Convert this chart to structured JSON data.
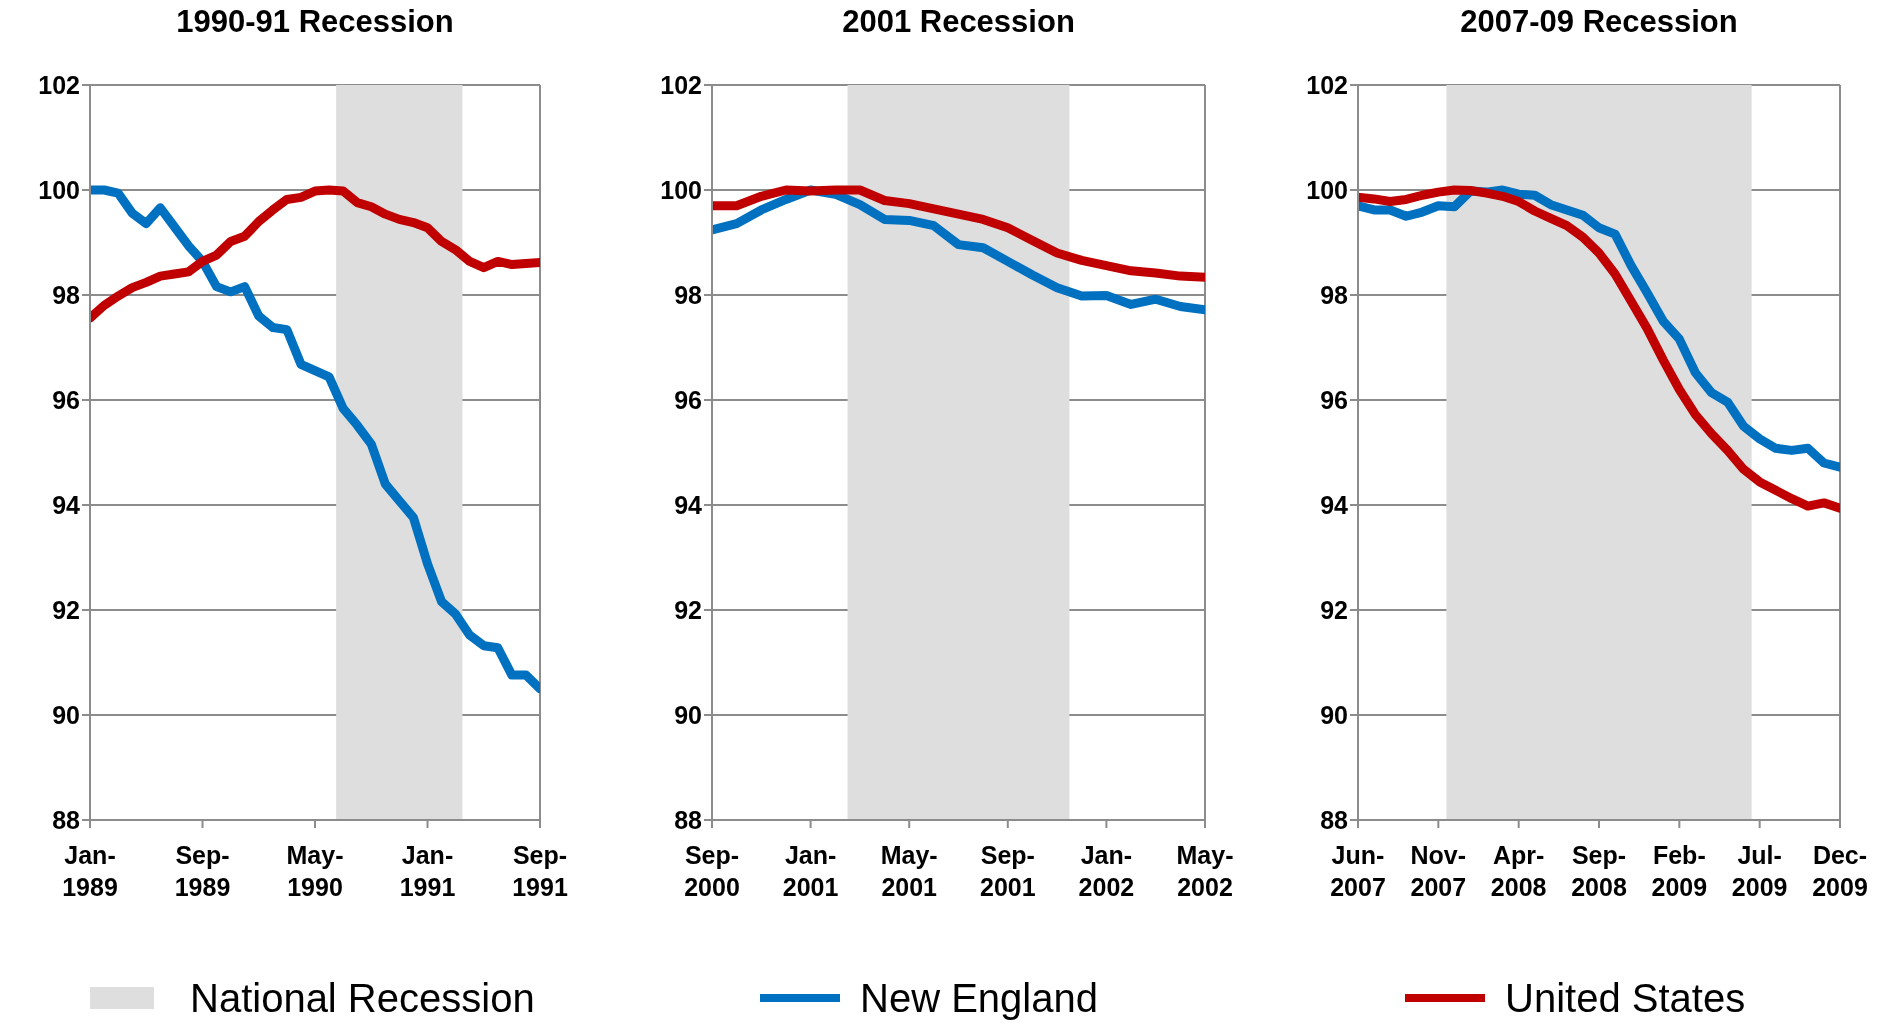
{
  "chart_data": [
    {
      "type": "line",
      "title": "1990-91 Recession",
      "legend": "bottom",
      "grid": "y",
      "x": [
        "1989-01",
        "1989-02",
        "1989-03",
        "1989-04",
        "1989-05",
        "1989-06",
        "1989-07",
        "1989-08",
        "1989-09",
        "1989-10",
        "1989-11",
        "1989-12",
        "1990-01",
        "1990-02",
        "1990-03",
        "1990-04",
        "1990-05",
        "1990-06",
        "1990-07",
        "1990-08",
        "1990-09",
        "1990-10",
        "1990-11",
        "1990-12",
        "1991-01",
        "1991-02",
        "1991-03",
        "1991-04",
        "1991-05",
        "1991-06",
        "1991-07",
        "1991-08",
        "1991-09"
      ],
      "series": [
        {
          "name": "New England",
          "color": "#0070c0",
          "values": [
            100,
            100,
            99.94,
            99.56,
            99.36,
            99.66,
            99.3,
            98.94,
            98.64,
            98.16,
            98.06,
            98.16,
            97.6,
            97.38,
            97.34,
            96.68,
            96.56,
            96.44,
            95.84,
            95.52,
            95.16,
            94.4,
            94.08,
            93.76,
            92.88,
            92.16,
            91.92,
            91.52,
            91.32,
            91.28,
            90.76,
            90.76,
            90.5
          ]
        },
        {
          "name": "United States",
          "color": "#c00000",
          "values": [
            97.56,
            97.8,
            97.98,
            98.14,
            98.24,
            98.36,
            98.4,
            98.44,
            98.64,
            98.76,
            99.02,
            99.12,
            99.4,
            99.62,
            99.82,
            99.86,
            99.98,
            100,
            99.98,
            99.76,
            99.68,
            99.54,
            99.44,
            99.38,
            99.28,
            99.02,
            98.86,
            98.64,
            98.52,
            98.64,
            98.58,
            98.6,
            98.62
          ]
        }
      ],
      "bands": [
        {
          "axis": "x",
          "from": "1990-06-16",
          "to": "1991-03-16",
          "label": "National Recession",
          "color": "#dedede"
        }
      ],
      "xlim": [
        "1989-01",
        "1991-09"
      ],
      "xticks": [
        {
          "value": "1989-01",
          "label": "Jan-1989"
        },
        {
          "value": "1989-09",
          "label": "Sep-1989"
        },
        {
          "value": "1990-05",
          "label": "May-1990"
        },
        {
          "value": "1991-01",
          "label": "Jan-1991"
        },
        {
          "value": "1991-09",
          "label": "Sep-1991"
        }
      ],
      "ylim": [
        88,
        102
      ],
      "yticks": [
        88,
        90,
        92,
        94,
        96,
        98,
        100,
        102
      ]
    },
    {
      "type": "line",
      "title": "2001 Recession",
      "grid": "y",
      "x": [
        "2000-09",
        "2000-10",
        "2000-11",
        "2000-12",
        "2001-01",
        "2001-02",
        "2001-03",
        "2001-04",
        "2001-05",
        "2001-06",
        "2001-07",
        "2001-08",
        "2001-09",
        "2001-10",
        "2001-11",
        "2001-12",
        "2002-01",
        "2002-02",
        "2002-03",
        "2002-04",
        "2002-05"
      ],
      "series": [
        {
          "color": "#0070c0",
          "values": [
            99.24,
            99.36,
            99.62,
            99.82,
            100,
            99.92,
            99.72,
            99.44,
            99.42,
            99.32,
            98.96,
            98.9,
            98.64,
            98.38,
            98.14,
            97.98,
            97.99,
            97.82,
            97.92,
            97.78,
            97.72
          ]
        },
        {
          "color": "#c00000",
          "values": [
            99.7,
            99.7,
            99.88,
            100,
            99.98,
            100,
            100,
            99.8,
            99.74,
            99.64,
            99.54,
            99.44,
            99.28,
            99.04,
            98.8,
            98.66,
            98.56,
            98.46,
            98.42,
            98.36,
            98.34
          ]
        }
      ],
      "bands": [
        {
          "axis": "x",
          "from": "2001-02-15",
          "to": "2001-11-16",
          "color": "#dedede"
        }
      ],
      "xlim": [
        "2000-09",
        "2002-05"
      ],
      "xticks": [
        {
          "value": "2000-09",
          "label": "Sep-2000"
        },
        {
          "value": "2001-01",
          "label": "Jan-2001"
        },
        {
          "value": "2001-05",
          "label": "May-2001"
        },
        {
          "value": "2001-09",
          "label": "Sep-2001"
        },
        {
          "value": "2002-01",
          "label": "Jan-2002"
        },
        {
          "value": "2002-05",
          "label": "May-2002"
        }
      ],
      "ylim": [
        88,
        102
      ],
      "yticks": [
        88,
        90,
        92,
        94,
        96,
        98,
        100,
        102
      ]
    },
    {
      "type": "line",
      "title": "2007-09 Recession",
      "grid": "y",
      "x": [
        "2007-06",
        "2007-07",
        "2007-08",
        "2007-09",
        "2007-10",
        "2007-11",
        "2007-12",
        "2008-01",
        "2008-02",
        "2008-03",
        "2008-04",
        "2008-05",
        "2008-06",
        "2008-07",
        "2008-08",
        "2008-09",
        "2008-10",
        "2008-11",
        "2008-12",
        "2009-01",
        "2009-02",
        "2009-03",
        "2009-04",
        "2009-05",
        "2009-06",
        "2009-07",
        "2009-08",
        "2009-09",
        "2009-10",
        "2009-11",
        "2009-12"
      ],
      "series": [
        {
          "color": "#0070c0",
          "values": [
            99.7,
            99.62,
            99.62,
            99.5,
            99.58,
            99.7,
            99.68,
            99.98,
            99.96,
            100,
            99.92,
            99.9,
            99.72,
            99.62,
            99.52,
            99.28,
            99.16,
            98.56,
            98.04,
            97.5,
            97.16,
            96.52,
            96.14,
            95.96,
            95.5,
            95.26,
            95.08,
            95.04,
            95.08,
            94.8,
            94.72
          ]
        },
        {
          "color": "#c00000",
          "values": [
            99.86,
            99.83,
            99.78,
            99.82,
            99.9,
            99.96,
            100,
            99.99,
            99.94,
            99.88,
            99.78,
            99.6,
            99.46,
            99.32,
            99.1,
            98.8,
            98.4,
            97.88,
            97.36,
            96.76,
            96.2,
            95.72,
            95.36,
            95.04,
            94.68,
            94.44,
            94.28,
            94.12,
            93.98,
            94.04,
            93.94
          ]
        }
      ],
      "bands": [
        {
          "axis": "x",
          "from": "2007-11-16",
          "to": "2009-06-16",
          "color": "#dedede"
        }
      ],
      "xlim": [
        "2007-06",
        "2009-12"
      ],
      "xticks": [
        {
          "value": "2007-06",
          "label": "Jun-2007"
        },
        {
          "value": "2007-11",
          "label": "Nov-2007"
        },
        {
          "value": "2008-04",
          "label": "Apr-2008"
        },
        {
          "value": "2008-09",
          "label": "Sep-2008"
        },
        {
          "value": "2009-02",
          "label": "Feb-2009"
        },
        {
          "value": "2009-07",
          "label": "Jul-2009"
        },
        {
          "value": "2009-12",
          "label": "Dec-2009"
        }
      ],
      "ylim": [
        88,
        102
      ],
      "yticks": [
        88,
        90,
        92,
        94,
        96,
        98,
        100,
        102
      ]
    }
  ]
}
